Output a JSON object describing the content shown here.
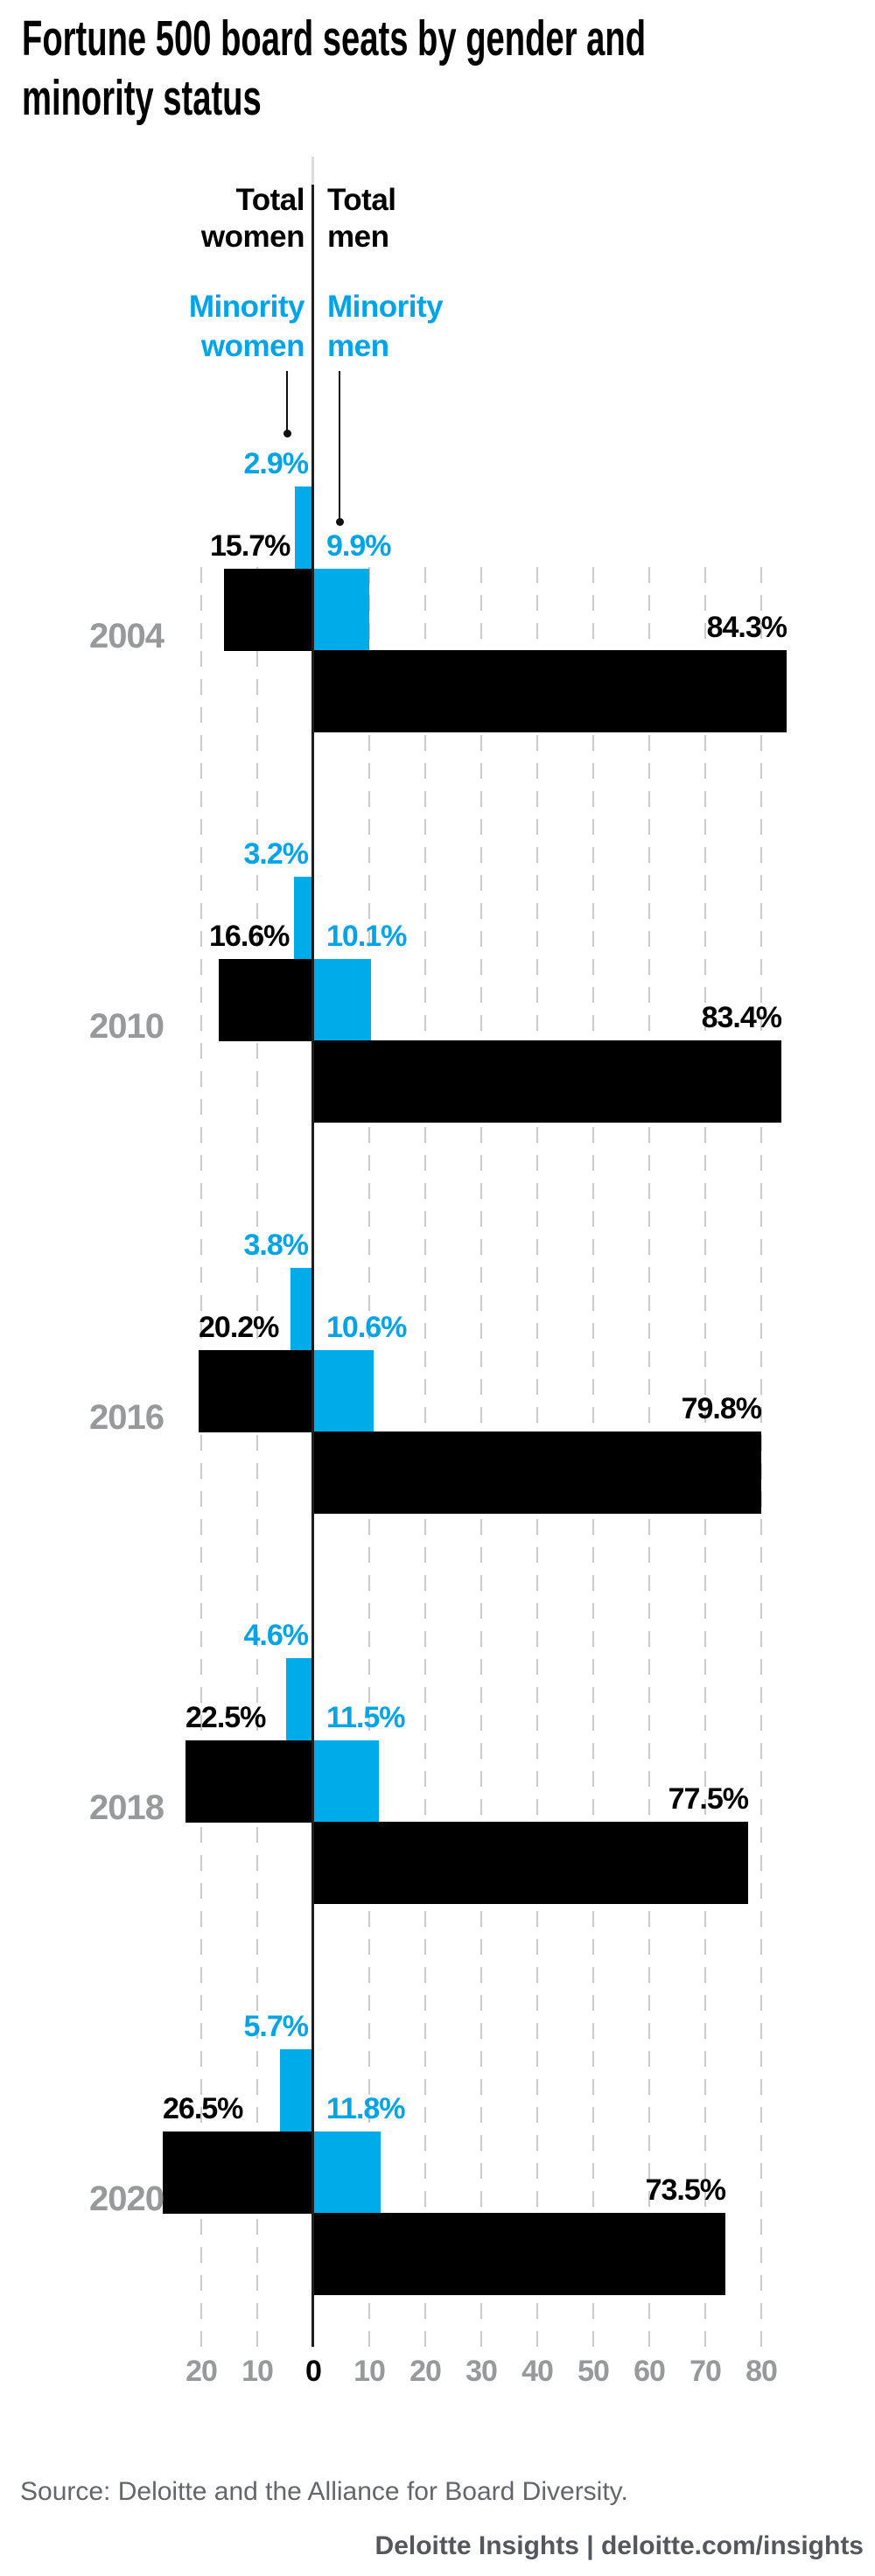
{
  "title_lines": [
    "Fortune 500 board seats by gender and",
    "minority status"
  ],
  "legend": {
    "total_women": [
      "Total",
      "women"
    ],
    "total_men": [
      "Total",
      "men"
    ],
    "minority_women": [
      "Minority",
      "women"
    ],
    "minority_men": [
      "Minority",
      "men"
    ]
  },
  "chart_data": {
    "type": "bar",
    "orientation": "horizontal",
    "diverging": true,
    "unit": "%",
    "title": "Fortune 500 board seats by gender and minority status",
    "categories": [
      "2004",
      "2010",
      "2016",
      "2018",
      "2020"
    ],
    "series": [
      {
        "name": "Minority women",
        "side": "left",
        "color_key": "blue",
        "values": [
          2.9,
          3.2,
          3.8,
          4.6,
          5.7
        ]
      },
      {
        "name": "Total women",
        "side": "left",
        "color_key": "black",
        "values": [
          15.7,
          16.6,
          20.2,
          22.5,
          26.5
        ]
      },
      {
        "name": "Minority men",
        "side": "right",
        "color_key": "blue",
        "values": [
          9.9,
          10.1,
          10.6,
          11.5,
          11.8
        ]
      },
      {
        "name": "Total men",
        "side": "right",
        "color_key": "black",
        "values": [
          84.3,
          83.4,
          79.8,
          77.5,
          73.5
        ]
      }
    ],
    "x_axis": {
      "tick_labels": [
        "20",
        "10",
        "0",
        "10",
        "20",
        "30",
        "40",
        "50",
        "60",
        "70",
        "80"
      ],
      "tick_values": [
        -20,
        -10,
        0,
        10,
        20,
        30,
        40,
        50,
        60,
        70,
        80
      ],
      "range_left_pct": 20,
      "range_right_pct": 80,
      "gridlines": "dashed"
    },
    "legend_position": "top",
    "grid": true
  },
  "colors": {
    "bar_black": "#000000",
    "bar_blue": "#00abea",
    "label_blue": "#00a3e6",
    "grid_gray": "#cbcbcb",
    "year_gray": "#97999b",
    "tick_gray": "#97999b",
    "tick_zero": "#000000",
    "axis_dark": "#1d1d1d",
    "axis_light": "#dcdcdc"
  },
  "footer": {
    "source": "Source: Deloitte and the Alliance for Board Diversity.",
    "attribution": "Deloitte Insights | deloitte.com/insights"
  }
}
